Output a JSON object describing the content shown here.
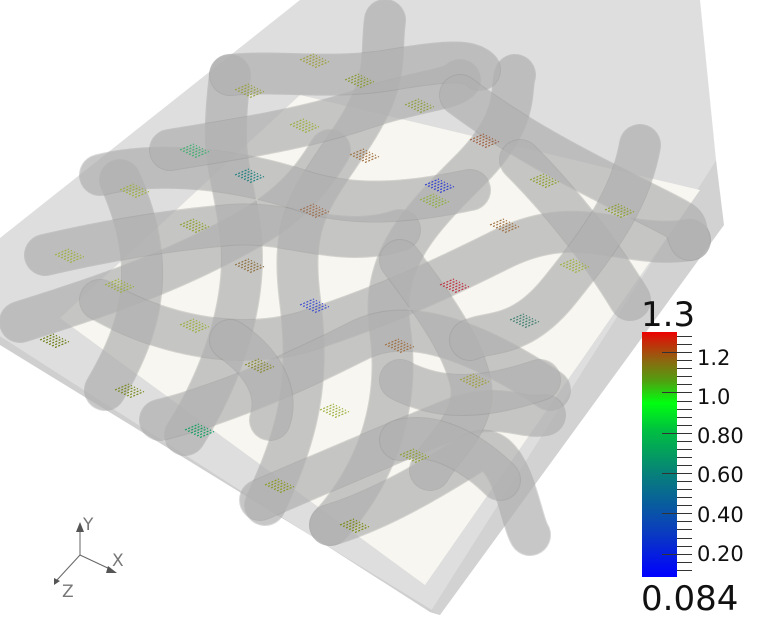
{
  "scene": {
    "description_colors": {
      "background": "#ffffff",
      "box_top": "#dcdcdc",
      "box_floor": "#f7f6f0",
      "tube": "#b8b8b8"
    }
  },
  "color_legend": {
    "max_label": "1.3",
    "min_label": "0.084",
    "range": [
      0.084,
      1.3
    ],
    "tick_labels": [
      "1.2",
      "1.0",
      "0.80",
      "0.60",
      "0.40",
      "0.20"
    ],
    "tick_values": [
      1.2,
      1.0,
      0.8,
      0.6,
      0.4,
      0.2
    ],
    "colormap": [
      "#0000ff",
      "#07807a",
      "#00ff10",
      "#8a6a10",
      "#ee0000"
    ]
  },
  "orientation_axes": {
    "x": "X",
    "y": "Y",
    "z": "Z"
  }
}
